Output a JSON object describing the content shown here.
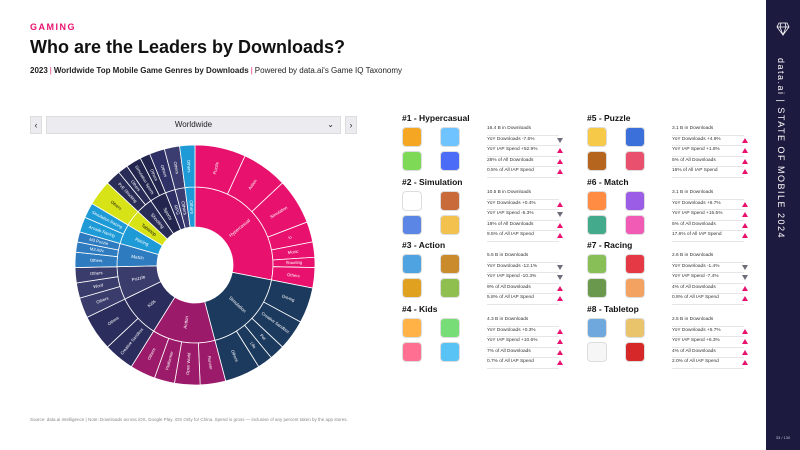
{
  "header": {
    "eyebrow": "GAMING",
    "title": "Who are the Leaders by Downloads?",
    "subtitle_year": "2023",
    "subtitle_main": "Worldwide Top Mobile Game Genres by Downloads",
    "subtitle_powered": "Powered by data.ai's Game IQ Taxonomy"
  },
  "side": {
    "label": "data.ai | STATE OF MOBILE 2024",
    "page": "33 / 130"
  },
  "selector": {
    "value": "Worldwide",
    "prev": "‹",
    "next": "›",
    "caret": "⌄"
  },
  "footnote": "Source: data.ai Intelligence | Note: Downloads across iOS, Google Play. iOS Only for China. Spend is gross — inclusive of any percent taken by the app stores.",
  "colors": {
    "accent": "#e8126e",
    "navy": "#1c1a3e",
    "teal": "#1e9bd7",
    "lime": "#d7e317"
  },
  "chart_data": {
    "type": "sunburst",
    "title": "Worldwide",
    "inner_ring": [
      {
        "label": "Hypercasual",
        "value": 20.5,
        "color": "#e8126e"
      },
      {
        "label": "Simulation",
        "value": 13.0,
        "color": "#1c3a5e"
      },
      {
        "label": "Action",
        "value": 9.5,
        "color": "#9c1a6a"
      },
      {
        "label": "Kids",
        "value": 6.5,
        "color": "#2b2d5c"
      },
      {
        "label": "Puzzle",
        "value": 5.0,
        "color": "#3a3c6c"
      },
      {
        "label": "Match",
        "value": 3.5,
        "color": "#2e7bbf"
      },
      {
        "label": "Racing",
        "value": 3.0,
        "color": "#1e9bd7"
      },
      {
        "label": "Tabletop",
        "value": 2.5,
        "color": "#d7e317"
      },
      {
        "label": "Shooting",
        "value": 2.5,
        "color": "#2a2c58"
      },
      {
        "label": "Sports",
        "value": 2.5,
        "color": "#23254e"
      },
      {
        "label": "RPG",
        "value": 1.5,
        "color": "#2f3166"
      },
      {
        "label": "Others",
        "value": 1.5,
        "color": "#3b3d70"
      },
      {
        "label": "Others",
        "value": 1.5,
        "color": "#1e9bd7"
      }
    ],
    "outer_ring": [
      {
        "label": "Puzzle",
        "value": 5.0,
        "color": "#e8126e"
      },
      {
        "label": "Action",
        "value": 4.5,
        "color": "#e8126e"
      },
      {
        "label": "Simulation",
        "value": 4.5,
        "color": "#e8126e"
      },
      {
        "label": "io",
        "value": 2.0,
        "color": "#e8126e"
      },
      {
        "label": "Music",
        "value": 1.5,
        "color": "#e8126e"
      },
      {
        "label": "Shooting",
        "value": 1.0,
        "color": "#e8126e"
      },
      {
        "label": "Others",
        "value": 2.0,
        "color": "#e8126e"
      },
      {
        "label": "Driving",
        "value": 3.5,
        "color": "#1c3a5e"
      },
      {
        "label": "Creative Sandbox",
        "value": 3.0,
        "color": "#1c3a5e"
      },
      {
        "label": "Pet",
        "value": 1.5,
        "color": "#1c3a5e"
      },
      {
        "label": "Life",
        "value": 1.5,
        "color": "#1c3a5e"
      },
      {
        "label": "Others",
        "value": 3.5,
        "color": "#1c3a5e"
      },
      {
        "label": "Runner",
        "value": 2.5,
        "color": "#9c1a6a"
      },
      {
        "label": "Open World",
        "value": 2.5,
        "color": "#9c1a6a"
      },
      {
        "label": "Platformer",
        "value": 2.0,
        "color": "#9c1a6a"
      },
      {
        "label": "Others",
        "value": 2.5,
        "color": "#9c1a6a"
      },
      {
        "label": "Creative Sandbox",
        "value": 3.0,
        "color": "#2b2d5c"
      },
      {
        "label": "Others",
        "value": 3.5,
        "color": "#2b2d5c"
      },
      {
        "label": "Others",
        "value": 2.0,
        "color": "#3a3c6c"
      },
      {
        "label": "Word",
        "value": 1.5,
        "color": "#3a3c6c"
      },
      {
        "label": "Others",
        "value": 1.5,
        "color": "#3a3c6c"
      },
      {
        "label": "Others",
        "value": 1.5,
        "color": "#2e7bbf"
      },
      {
        "label": "M3 Adv.",
        "value": 1.0,
        "color": "#2e7bbf"
      },
      {
        "label": "M3 Puzzle",
        "value": 1.0,
        "color": "#2e7bbf"
      },
      {
        "label": "Arcade Racing",
        "value": 1.5,
        "color": "#1e9bd7"
      },
      {
        "label": "Simulation Racing",
        "value": 1.5,
        "color": "#1e9bd7"
      },
      {
        "label": "Others",
        "value": 2.5,
        "color": "#d7e317"
      },
      {
        "label": "PvE Shooting",
        "value": 1.5,
        "color": "#2a2c58"
      },
      {
        "label": "Others",
        "value": 1.0,
        "color": "#2a2c58"
      },
      {
        "label": "Simulation Sports",
        "value": 1.5,
        "color": "#23254e"
      },
      {
        "label": "Others",
        "value": 1.0,
        "color": "#23254e"
      },
      {
        "label": "Others",
        "value": 1.5,
        "color": "#2f3166"
      },
      {
        "label": "Others",
        "value": 1.5,
        "color": "#3b3d70"
      },
      {
        "label": "Others",
        "value": 1.5,
        "color": "#1e9bd7"
      }
    ]
  },
  "genres": [
    {
      "title": "#1 - Hypercasual",
      "stats": [
        "16.4 B in Downloads",
        "YoY Downloads -7.5%",
        "YoY IAP Spend +52.9%",
        "28% of All Downloads",
        "0.5% of All IAP Spend"
      ],
      "arrows": [
        "down",
        "up",
        "up",
        "up"
      ],
      "icons": [
        "#f5a623",
        "#6fc3ff",
        "#7ed957",
        "#4a6cf7"
      ]
    },
    {
      "title": "#2 - Simulation",
      "stats": [
        "10.5 B in Downloads",
        "YoY Downloads +0.4%",
        "YoY IAP Spend -5.3%",
        "18% of All Downloads",
        "9.5% of All IAP Spend"
      ],
      "arrows": [
        "up",
        "down",
        "up",
        "up"
      ],
      "icons": [
        "#ffffff",
        "#c96a3b",
        "#5b86e5",
        "#f2c14e"
      ]
    },
    {
      "title": "#3 - Action",
      "stats": [
        "5.5 B in Downloads",
        "YoY Downloads -12.1%",
        "YoY IAP Spend -10.3%",
        "9% of All Downloads",
        "5.8% of All IAP Spend"
      ],
      "arrows": [
        "down",
        "down",
        "up",
        "up"
      ],
      "icons": [
        "#4fa3e0",
        "#c98b2b",
        "#e0a020",
        "#8fbf4f"
      ]
    },
    {
      "title": "#4 - Kids",
      "stats": [
        "4.3 B in Downloads",
        "YoY Downloads +0.3%",
        "YoY IAP Spend +10.6%",
        "7% of All Downloads",
        "0.7% of All IAP Spend"
      ],
      "arrows": [
        "up",
        "up",
        "up",
        "up"
      ],
      "icons": [
        "#ffb347",
        "#77dd77",
        "#ff6f91",
        "#59c3f5"
      ]
    },
    {
      "title": "#5 - Puzzle",
      "stats": [
        "3.1 B in Downloads",
        "YoY Downloads +4.9%",
        "YoY IAP Spend +1.8%",
        "5% of All Downloads",
        "16% of All IAP Spend"
      ],
      "arrows": [
        "up",
        "up",
        "up",
        "up"
      ],
      "icons": [
        "#f7c948",
        "#3b6fd9",
        "#b5651d",
        "#e8506e"
      ]
    },
    {
      "title": "#6 - Match",
      "stats": [
        "3.1 B in Downloads",
        "YoY Downloads +6.7%",
        "YoY IAP Spend +15.5%",
        "5% of All Downloads",
        "17.6% of All IAP Spend"
      ],
      "arrows": [
        "up",
        "up",
        "up",
        "up"
      ],
      "icons": [
        "#ff8c42",
        "#9b5de5",
        "#43aa8b",
        "#f15bb5"
      ]
    },
    {
      "title": "#7 - Racing",
      "stats": [
        "2.6 B in Downloads",
        "YoY Downloads -1.4%",
        "YoY IAP Spend -7.4%",
        "4% of All Downloads",
        "0.8% of All IAP Spend"
      ],
      "arrows": [
        "down",
        "down",
        "up",
        "up"
      ],
      "icons": [
        "#88c057",
        "#e63946",
        "#6a994e",
        "#f4a261"
      ]
    },
    {
      "title": "#8 - Tabletop",
      "stats": [
        "2.5 B in Downloads",
        "YoY Downloads +5.7%",
        "YoY IAP Spend +6.3%",
        "4% of All Downloads",
        "2.0% of All IAP Spend"
      ],
      "arrows": [
        "up",
        "up",
        "up",
        "up"
      ],
      "icons": [
        "#6fa8dc",
        "#e9c46a",
        "#f6f6f6",
        "#d62828"
      ]
    }
  ]
}
